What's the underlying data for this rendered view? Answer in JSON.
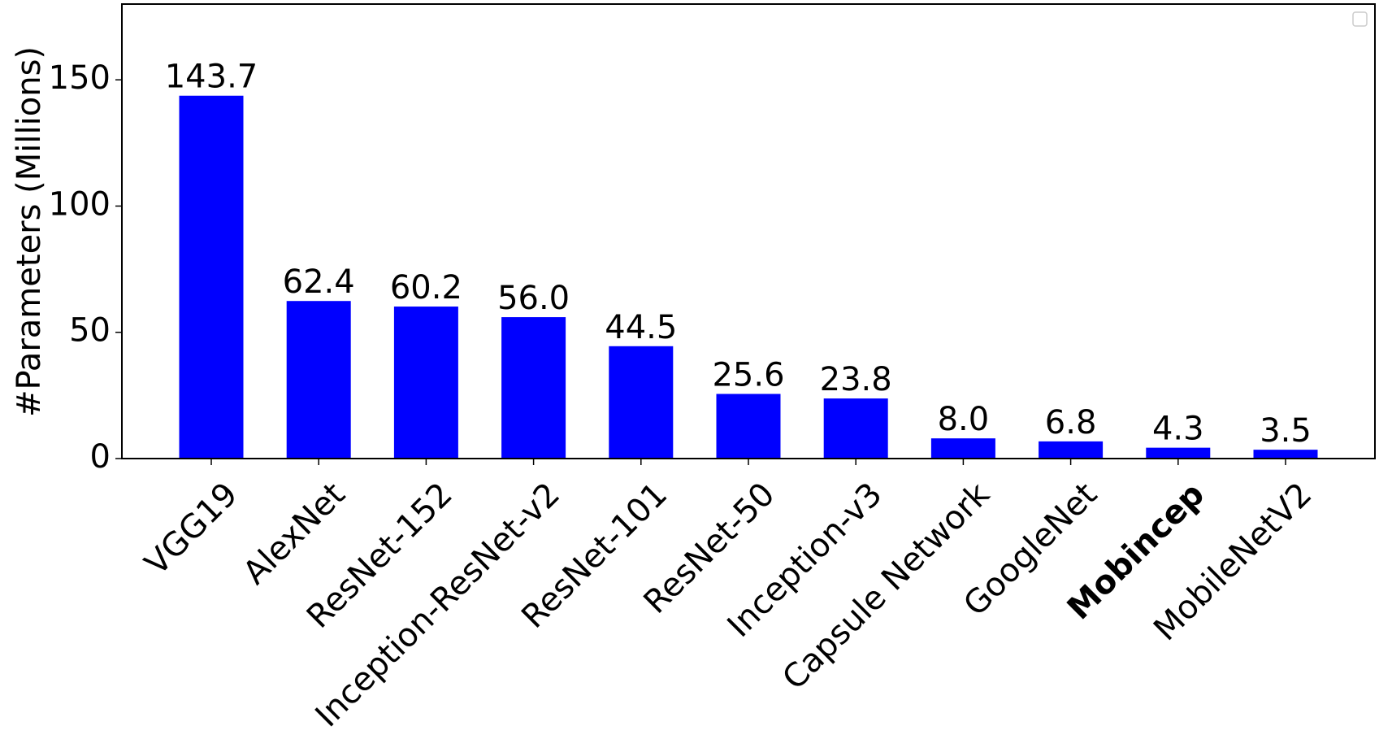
{
  "chart_data": {
    "type": "bar",
    "title": "",
    "xlabel": "",
    "ylabel": "#Parameters (Millions)",
    "categories": [
      "VGG19",
      "AlexNet",
      "ResNet-152",
      "Inception-ResNet-v2",
      "ResNet-101",
      "ResNet-50",
      "Inception-v3",
      "Capsule Network",
      "GoogleNet",
      "Mobincep",
      "MobileNetV2"
    ],
    "emphasized_categories": [
      "Mobincep"
    ],
    "values": [
      143.7,
      62.4,
      60.2,
      56.0,
      44.5,
      25.6,
      23.8,
      8.0,
      6.8,
      4.3,
      3.5
    ],
    "value_labels": [
      "143.7",
      "62.4",
      "60.2",
      "56.0",
      "44.5",
      "25.6",
      "23.8",
      "8.0",
      "6.8",
      "4.3",
      "3.5"
    ],
    "yticks": [
      0,
      50,
      100,
      150
    ],
    "ylim": [
      0,
      180
    ],
    "bar_color": "#0000ff",
    "grid": false,
    "legend": "top-right, empty"
  }
}
